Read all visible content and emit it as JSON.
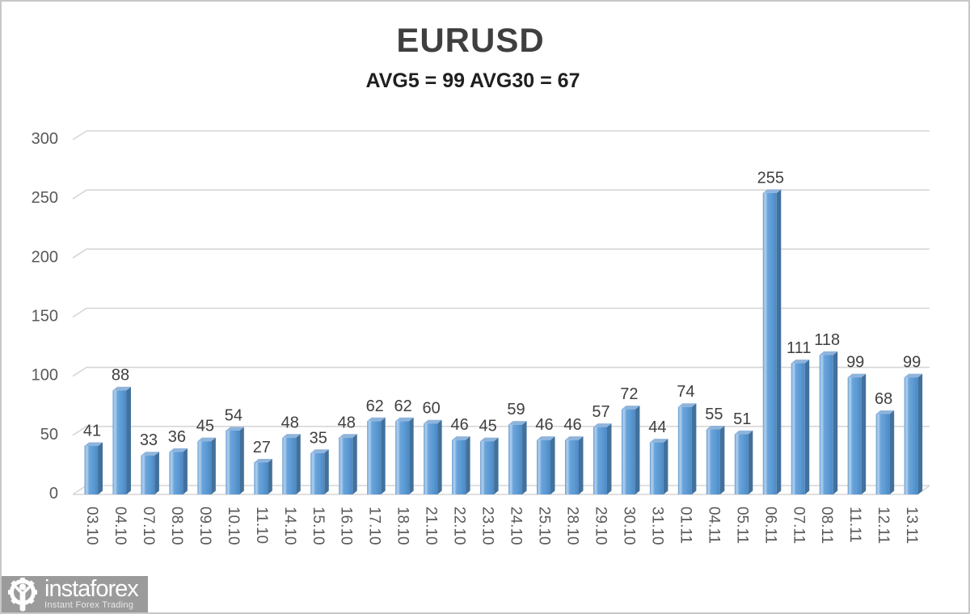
{
  "title": "EURUSD",
  "subtitle": "AVG5 = 99 AVG30 = 67",
  "logo": {
    "name": "instaforex",
    "tagline": "Instant Forex Trading"
  },
  "chart_data": {
    "type": "bar",
    "title": "EURUSD",
    "subtitle": "AVG5 = 99 AVG30 = 67",
    "categories": [
      "03.10",
      "04.10",
      "07.10",
      "08.10",
      "09.10",
      "10.10",
      "11.10",
      "14.10",
      "15.10",
      "16.10",
      "17.10",
      "18.10",
      "21.10",
      "22.10",
      "23.10",
      "24.10",
      "25.10",
      "28.10",
      "29.10",
      "30.10",
      "31.10",
      "01.11",
      "04.11",
      "05.11",
      "06.11",
      "07.11",
      "08.11",
      "11.11",
      "12.11",
      "13.11"
    ],
    "values": [
      41,
      88,
      33,
      36,
      45,
      54,
      27,
      48,
      35,
      48,
      62,
      62,
      60,
      46,
      45,
      59,
      46,
      46,
      57,
      72,
      44,
      74,
      55,
      51,
      255,
      111,
      118,
      99,
      68,
      99
    ],
    "xlabel": "",
    "ylabel": "",
    "ylim": [
      0,
      300
    ],
    "yticks": [
      0,
      50,
      100,
      150,
      200,
      250,
      300
    ],
    "grid": true,
    "legend": false,
    "style_3d": true,
    "colors": {
      "bar_main": "#5B9BD5",
      "bar_highlight": "#AECFEE",
      "bar_shade": "#4E88C2",
      "bar_side": "#41719C",
      "bar_top": "#8FB4DC",
      "gridline": "#D6D6D6",
      "axis_tick_label": "#595959",
      "value_label": "#404040",
      "title": "#3F3F3F",
      "subtitle": "#1F1F1F"
    }
  }
}
